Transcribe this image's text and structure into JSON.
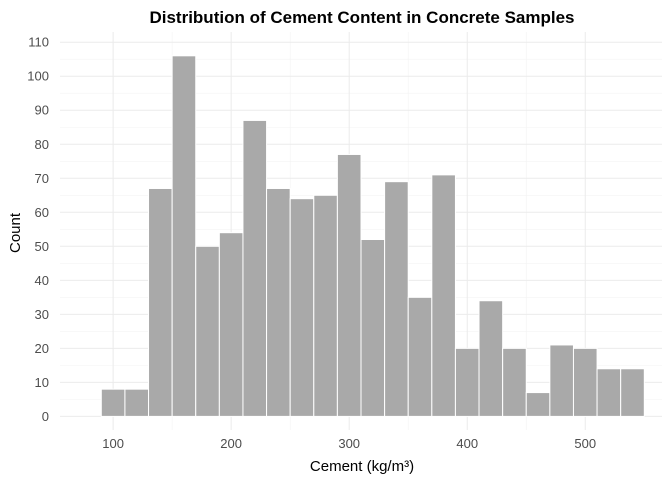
{
  "chart_data": {
    "type": "bar",
    "title": "Distribution of Cement Content in Concrete Samples",
    "xlabel": "Cement (kg/m³)",
    "ylabel": "Count",
    "bin_edges": [
      90,
      110,
      130,
      150,
      170,
      190,
      210,
      230,
      250,
      270,
      290,
      310,
      330,
      350,
      370,
      390,
      410,
      430,
      450,
      470,
      490,
      510,
      530,
      550
    ],
    "values": [
      8,
      8,
      67,
      106,
      50,
      54,
      87,
      67,
      64,
      65,
      77,
      52,
      69,
      35,
      71,
      20,
      34,
      20,
      7,
      21,
      20,
      14,
      14
    ],
    "xlim": [
      55,
      565
    ],
    "ylim": [
      -4,
      113
    ],
    "x_ticks": [
      100,
      200,
      300,
      400,
      500
    ],
    "y_ticks": [
      0,
      10,
      20,
      30,
      40,
      50,
      60,
      70,
      80,
      90,
      100,
      110
    ],
    "bar_color": "#a9a9a9",
    "bar_edge_color": "#ffffff",
    "grid": true,
    "legend": "none"
  }
}
